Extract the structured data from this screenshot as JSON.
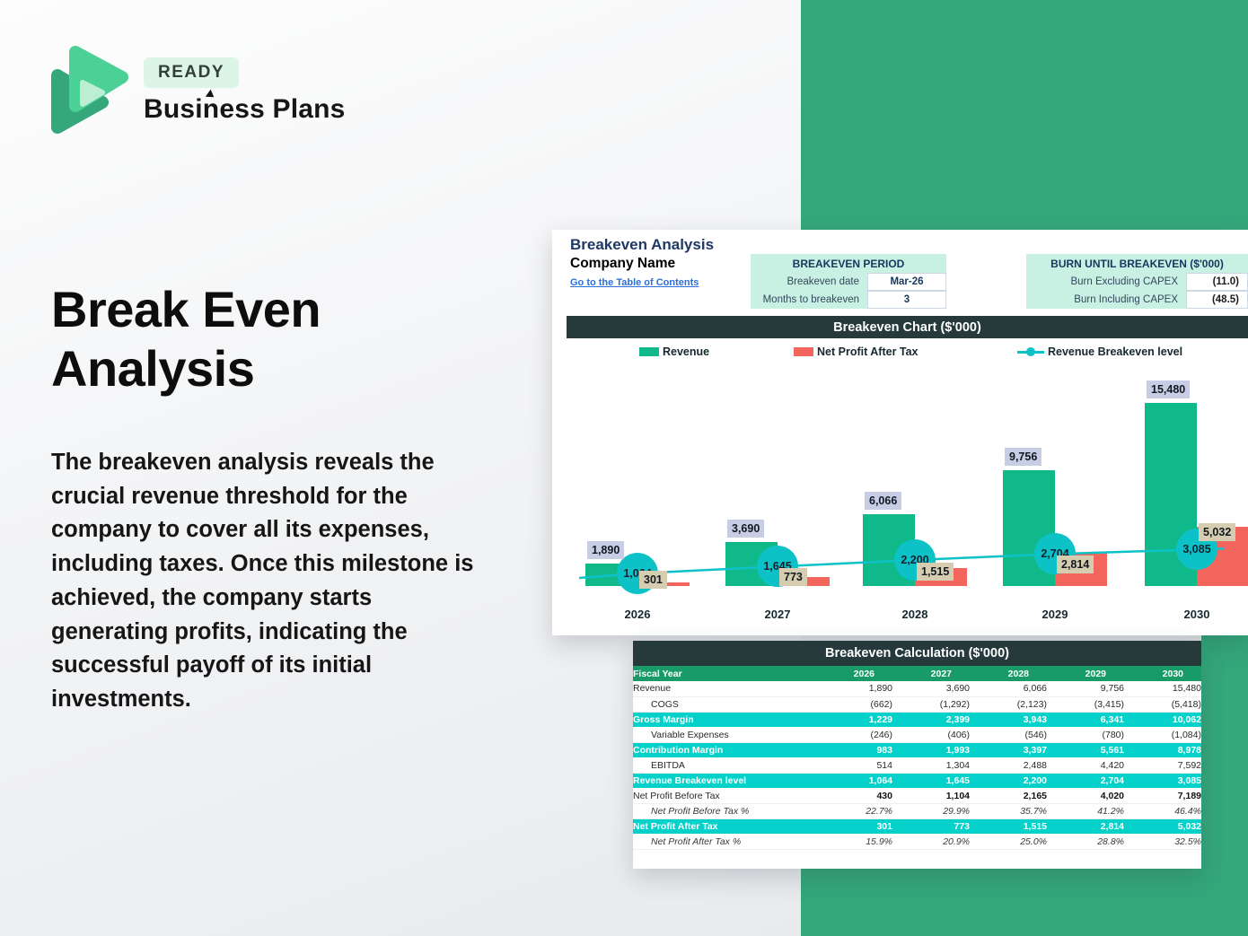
{
  "brand": {
    "badge": "READY",
    "name": "Business Plans"
  },
  "hero": {
    "title": "Break Even Analysis",
    "paragraph": "The breakeven analysis reveals the crucial revenue threshold for the company to cover all its expenses, including taxes. Once this milestone is achieved, the company starts generating profits, indicating the successful payoff of its initial investments."
  },
  "sheet": {
    "title": "Breakeven Analysis",
    "company": "Company Name",
    "toc_link": "Go to the Table of Contents",
    "period_table": {
      "header": "BREAKEVEN PERIOD",
      "rows": [
        {
          "label": "Breakeven date",
          "value": "Mar-26"
        },
        {
          "label": "Months to breakeven",
          "value": "3"
        }
      ]
    },
    "burn_table": {
      "header": "BURN UNTIL BREAKEVEN ($'000)",
      "rows": [
        {
          "label": "Burn Excluding CAPEX",
          "value": "(11.0)"
        },
        {
          "label": "Burn Including CAPEX",
          "value": "(48.5)"
        }
      ]
    }
  },
  "chart_data": {
    "type": "bar",
    "title": "Breakeven Chart ($'000)",
    "categories": [
      "2026",
      "2027",
      "2028",
      "2029",
      "2030"
    ],
    "series": [
      {
        "name": "Revenue",
        "kind": "bar",
        "color": "#10b98a",
        "values": [
          1890,
          3690,
          6066,
          9756,
          15480
        ],
        "labels": [
          "1,890",
          "3,690",
          "6,066",
          "9,756",
          "15,480"
        ]
      },
      {
        "name": "Net Profit After Tax",
        "kind": "bar",
        "color": "#f4655e",
        "values": [
          301,
          773,
          1515,
          2814,
          5032
        ],
        "labels": [
          "301",
          "773",
          "1,515",
          "2,814",
          "5,032"
        ]
      },
      {
        "name": "Revenue Breakeven level",
        "kind": "line",
        "color": "#0cc2c7",
        "values": [
          1064,
          1645,
          2200,
          2704,
          3085
        ],
        "labels": [
          "1,064",
          "1,645",
          "2,200",
          "2,704",
          "3,085"
        ]
      }
    ],
    "legend_position": "top",
    "gridlines": false,
    "ylim": [
      0,
      16000
    ]
  },
  "calc_table": {
    "title": "Breakeven Calculation ($'000)",
    "header_label": "Fiscal Year",
    "columns": [
      "2026",
      "2027",
      "2028",
      "2029",
      "2030"
    ],
    "rows": [
      {
        "label": "Revenue",
        "style": "plain",
        "values": [
          "1,890",
          "3,690",
          "6,066",
          "9,756",
          "15,480"
        ]
      },
      {
        "label": "COGS",
        "style": "sub",
        "values": [
          "(662)",
          "(1,292)",
          "(2,123)",
          "(3,415)",
          "(5,418)"
        ]
      },
      {
        "label": "Gross Margin",
        "style": "hl",
        "values": [
          "1,229",
          "2,399",
          "3,943",
          "6,341",
          "10,062"
        ]
      },
      {
        "label": "Variable Expenses",
        "style": "sub",
        "values": [
          "(246)",
          "(406)",
          "(546)",
          "(780)",
          "(1,084)"
        ]
      },
      {
        "label": "Contribution Margin",
        "style": "hl",
        "values": [
          "983",
          "1,993",
          "3,397",
          "5,561",
          "8,978"
        ]
      },
      {
        "label": "EBITDA",
        "style": "sub",
        "values": [
          "514",
          "1,304",
          "2,488",
          "4,420",
          "7,592"
        ]
      },
      {
        "label": "Revenue Breakeven level",
        "style": "hl",
        "values": [
          "1,064",
          "1,645",
          "2,200",
          "2,704",
          "3,085"
        ]
      },
      {
        "label": "Net Profit Before Tax",
        "style": "boldrow",
        "values": [
          "430",
          "1,104",
          "2,165",
          "4,020",
          "7,189"
        ]
      },
      {
        "label": "Net Profit Before Tax %",
        "style": "pct",
        "values": [
          "22.7%",
          "29.9%",
          "35.7%",
          "41.2%",
          "46.4%"
        ]
      },
      {
        "label": "Net Profit After Tax",
        "style": "hl",
        "values": [
          "301",
          "773",
          "1,515",
          "2,814",
          "5,032"
        ]
      },
      {
        "label": "Net Profit After Tax %",
        "style": "pct",
        "values": [
          "15.9%",
          "20.9%",
          "25.0%",
          "28.8%",
          "32.5%"
        ]
      }
    ]
  },
  "colors": {
    "background_green": "#34a77b",
    "bar_green": "#10b98a",
    "bar_red": "#f4655e",
    "breakeven_teal": "#0cc2c7",
    "titlebar_slate": "#263a3c",
    "table_header_green": "#189b67",
    "highlight_teal": "#04d2ca",
    "mint_cell": "#c9f1e3",
    "navy_text": "#1f3864",
    "rev_label_bg": "#c7cde4",
    "npat_label_bg": "#d6cdb0"
  }
}
